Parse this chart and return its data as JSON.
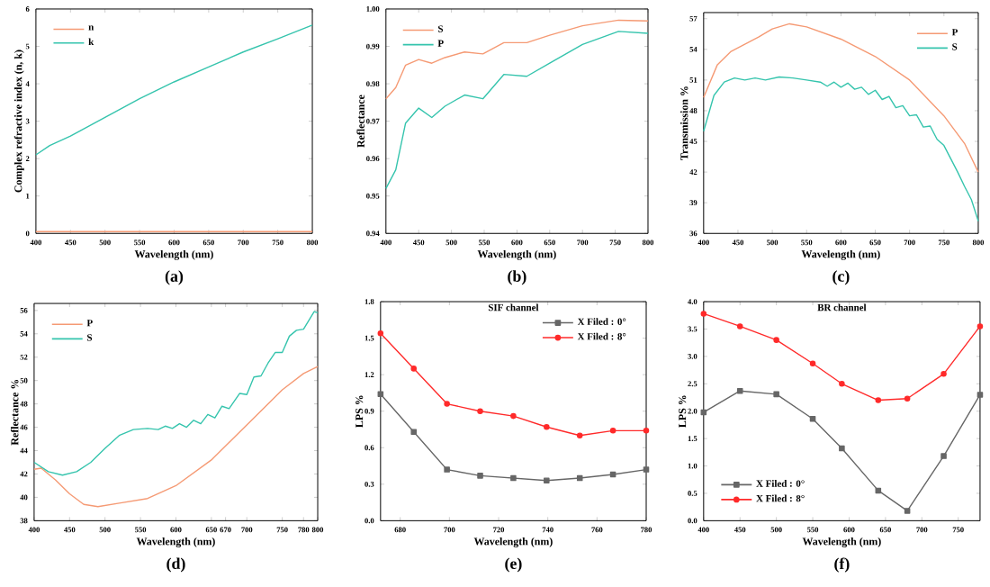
{
  "chart_data": [
    {
      "type": "line",
      "xlabel": "Wavelength (nm)",
      "ylabel": "Complex refractive index (n, k)",
      "annotations": [
        "(a)"
      ],
      "xlim": [
        400,
        800
      ],
      "ylim": [
        0,
        6
      ],
      "xticks": [
        400,
        450,
        500,
        550,
        600,
        650,
        700,
        750,
        800
      ],
      "yticks": [
        0,
        1,
        2,
        3,
        4,
        5,
        6
      ],
      "legend": "top left",
      "series": [
        {
          "name": "n",
          "color": "#f59a74",
          "x": [
            400,
            600,
            800
          ],
          "values": [
            0.05,
            0.05,
            0.05
          ]
        },
        {
          "name": "k",
          "color": "#35c4ad",
          "x": [
            400,
            420,
            450,
            500,
            550,
            600,
            650,
            700,
            750,
            800
          ],
          "values": [
            2.1,
            2.35,
            2.6,
            3.1,
            3.6,
            4.05,
            4.45,
            4.85,
            5.2,
            5.57
          ]
        }
      ]
    },
    {
      "type": "line",
      "xlabel": "Wavelength (nm)",
      "ylabel": "Reflectance",
      "annotations": [
        "(b)"
      ],
      "xlim": [
        400,
        800
      ],
      "ylim": [
        0.94,
        1.0
      ],
      "xticks": [
        400,
        450,
        500,
        550,
        600,
        650,
        700,
        750,
        800
      ],
      "yticks": [
        0.94,
        0.95,
        0.96,
        0.97,
        0.98,
        0.99,
        {
          "value": 1.0,
          "label": "1.00"
        }
      ],
      "legend": "top left",
      "series": [
        {
          "name": "S",
          "color": "#f59a74",
          "x": [
            400,
            415,
            430,
            450,
            470,
            490,
            520,
            548,
            580,
            615,
            650,
            700,
            755,
            800
          ],
          "values": [
            0.976,
            0.979,
            0.985,
            0.9865,
            0.9855,
            0.987,
            0.9885,
            0.988,
            0.991,
            0.991,
            0.993,
            0.9955,
            0.997,
            0.9968
          ]
        },
        {
          "name": "P",
          "color": "#35c4ad",
          "x": [
            400,
            415,
            430,
            450,
            470,
            490,
            520,
            548,
            580,
            615,
            650,
            700,
            755,
            800
          ],
          "values": [
            0.952,
            0.957,
            0.9695,
            0.9735,
            0.971,
            0.974,
            0.977,
            0.976,
            0.9825,
            0.982,
            0.9855,
            0.9905,
            0.994,
            0.9935
          ]
        }
      ]
    },
    {
      "type": "line",
      "xlabel": "Wavelength (nm)",
      "ylabel": "Transmission %",
      "annotations": [
        "(c)"
      ],
      "xlim": [
        400,
        800
      ],
      "ylim": [
        36,
        57.6
      ],
      "xticks": [
        400,
        450,
        500,
        550,
        600,
        650,
        700,
        750,
        800
      ],
      "yticks": [
        36,
        39,
        42,
        45,
        48,
        51,
        54,
        57
      ],
      "legend": "top right",
      "series": [
        {
          "name": "P",
          "color": "#f59a74",
          "x": [
            400,
            420,
            440,
            460,
            480,
            500,
            525,
            550,
            600,
            650,
            700,
            750,
            780,
            800
          ],
          "values": [
            49.3,
            52.5,
            53.8,
            54.5,
            55.2,
            56.0,
            56.5,
            56.2,
            55.0,
            53.3,
            51.0,
            47.5,
            44.8,
            42.0
          ]
        },
        {
          "name": "S",
          "color": "#35c4ad",
          "x": [
            400,
            415,
            430,
            445,
            460,
            475,
            490,
            510,
            530,
            550,
            570,
            580,
            590,
            600,
            610,
            620,
            630,
            640,
            650,
            660,
            670,
            680,
            690,
            700,
            710,
            720,
            730,
            740,
            750,
            760,
            770,
            780,
            790,
            800
          ],
          "values": [
            46.0,
            49.5,
            50.8,
            51.2,
            51.0,
            51.2,
            51.0,
            51.3,
            51.2,
            51.0,
            50.8,
            50.4,
            50.8,
            50.3,
            50.7,
            50.1,
            50.3,
            49.6,
            50.0,
            49.1,
            49.4,
            48.3,
            48.5,
            47.5,
            47.6,
            46.4,
            46.5,
            45.2,
            44.6,
            43.3,
            42.0,
            40.6,
            39.3,
            37.2
          ]
        }
      ]
    },
    {
      "type": "line",
      "xlabel": "Wavelength (nm)",
      "ylabel": "Reflectance %",
      "annotations": [
        "(d)"
      ],
      "xlim": [
        400,
        800
      ],
      "ylim": [
        38,
        56.6
      ],
      "xticks": [
        400,
        450,
        500,
        550,
        600,
        650,
        670,
        700,
        750,
        780,
        800
      ],
      "yticks": [
        38,
        40,
        42,
        44,
        46,
        48,
        50,
        52,
        54,
        56
      ],
      "legend": "top left",
      "series": [
        {
          "name": "P",
          "color": "#f59a74",
          "x": [
            400,
            410,
            430,
            450,
            470,
            490,
            520,
            560,
            600,
            650,
            700,
            750,
            780,
            800
          ],
          "values": [
            42.4,
            42.5,
            41.5,
            40.3,
            39.4,
            39.2,
            39.5,
            39.9,
            41.0,
            43.2,
            46.2,
            49.2,
            50.6,
            51.2
          ]
        },
        {
          "name": "S",
          "color": "#35c4ad",
          "x": [
            400,
            420,
            440,
            460,
            480,
            500,
            520,
            540,
            560,
            575,
            585,
            595,
            605,
            615,
            625,
            635,
            645,
            655,
            665,
            675,
            690,
            700,
            710,
            720,
            730,
            740,
            750,
            760,
            770,
            780,
            795,
            800
          ],
          "values": [
            43.0,
            42.2,
            41.9,
            42.2,
            43.0,
            44.2,
            45.3,
            45.8,
            45.9,
            45.8,
            46.1,
            45.9,
            46.3,
            46.0,
            46.6,
            46.3,
            47.1,
            46.8,
            47.8,
            47.6,
            48.9,
            48.8,
            50.3,
            50.4,
            51.5,
            52.4,
            52.4,
            53.8,
            54.3,
            54.4,
            55.9,
            55.8
          ]
        }
      ]
    },
    {
      "type": "line",
      "title": "SIF channel",
      "xlabel": "Wavelength (nm)",
      "ylabel": "LPS %",
      "annotations": [
        "(e)"
      ],
      "xlim": [
        672,
        780
      ],
      "ylim": [
        0,
        1.8
      ],
      "xticks": [
        680,
        700,
        720,
        740,
        760,
        780
      ],
      "yticks": [
        {
          "value": 0,
          "label": "0.0"
        },
        0.3,
        0.6,
        0.9,
        1.2,
        1.5,
        1.8
      ],
      "legend": "top right",
      "x": [
        672,
        685.5,
        699,
        712.5,
        726,
        739.5,
        753,
        766.5,
        780
      ],
      "series": [
        {
          "name": "X Filed : 0°",
          "color": "#666666",
          "marker": "square",
          "values": [
            1.04,
            0.73,
            0.42,
            0.37,
            0.35,
            0.33,
            0.35,
            0.38,
            0.42
          ]
        },
        {
          "name": "X Filed : 8°",
          "color": "#ff2a2a",
          "marker": "circle",
          "values": [
            1.54,
            1.25,
            0.96,
            0.9,
            0.86,
            0.77,
            0.7,
            0.74,
            0.74
          ]
        }
      ]
    },
    {
      "type": "line",
      "title": "BR channel",
      "xlabel": "Wavelength (nm)",
      "ylabel": "LPS %",
      "annotations": [
        "(f)"
      ],
      "xlim": [
        400,
        780
      ],
      "ylim": [
        0,
        4
      ],
      "xticks": [
        400,
        450,
        500,
        550,
        600,
        650,
        700,
        750
      ],
      "yticks": [
        {
          "value": 0,
          "label": "0.0"
        },
        0.5,
        {
          "value": 1,
          "label": "1.0"
        },
        1.5,
        {
          "value": 2,
          "label": "2.0"
        },
        2.5,
        {
          "value": 3,
          "label": "3.0"
        },
        3.5,
        {
          "value": 4,
          "label": "4.0"
        }
      ],
      "legend": "bottom left",
      "x": [
        400,
        450,
        500,
        550,
        590,
        640,
        680,
        730,
        780
      ],
      "series": [
        {
          "name": "X Filed : 0°",
          "color": "#666666",
          "marker": "square",
          "values": [
            1.98,
            2.37,
            2.31,
            1.86,
            1.32,
            0.55,
            0.18,
            1.18,
            2.3
          ]
        },
        {
          "name": "X Filed : 8°",
          "color": "#ff2a2a",
          "marker": "circle",
          "values": [
            3.78,
            3.55,
            3.3,
            2.87,
            2.5,
            2.2,
            2.23,
            2.68,
            3.55
          ]
        }
      ]
    }
  ]
}
